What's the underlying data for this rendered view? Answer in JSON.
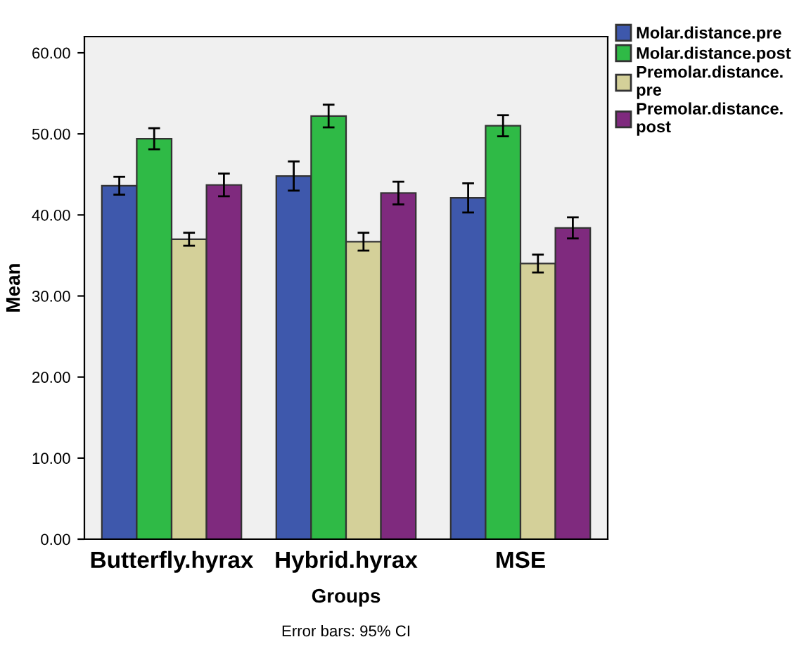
{
  "chart_data": {
    "type": "bar",
    "xlabel": "Groups",
    "ylabel": "Mean",
    "categories": [
      "Butterfly.hyrax",
      "Hybrid.hyrax",
      "MSE"
    ],
    "series": [
      {
        "name": "Molar.distance.pre",
        "color": "#3e58ac",
        "values": [
          43.6,
          44.8,
          42.1
        ],
        "errors": [
          1.1,
          1.8,
          1.8
        ]
      },
      {
        "name": "Molar.distance.post",
        "color": "#2fba46",
        "values": [
          49.4,
          52.2,
          51.0
        ],
        "errors": [
          1.3,
          1.4,
          1.3
        ]
      },
      {
        "name": "Premolar.distance.\npre",
        "color": "#d4d099",
        "values": [
          37.0,
          36.7,
          34.0
        ],
        "errors": [
          0.8,
          1.1,
          1.1
        ]
      },
      {
        "name": "Premolar.distance.\npost",
        "color": "#7f2a7e",
        "values": [
          43.7,
          42.7,
          38.4
        ],
        "errors": [
          1.4,
          1.4,
          1.3
        ]
      }
    ],
    "ylim": [
      0,
      62
    ],
    "yticks": [
      {
        "value": 0,
        "label": "0.00"
      },
      {
        "value": 10,
        "label": "10.00"
      },
      {
        "value": 20,
        "label": "20.00"
      },
      {
        "value": 30,
        "label": "30.00"
      },
      {
        "value": 40,
        "label": "40.00"
      },
      {
        "value": 50,
        "label": "50.00"
      },
      {
        "value": 60,
        "label": "60.00"
      }
    ],
    "grid": false,
    "legend": "top right",
    "annotations": [
      "Error bars: 95% CI"
    ]
  }
}
